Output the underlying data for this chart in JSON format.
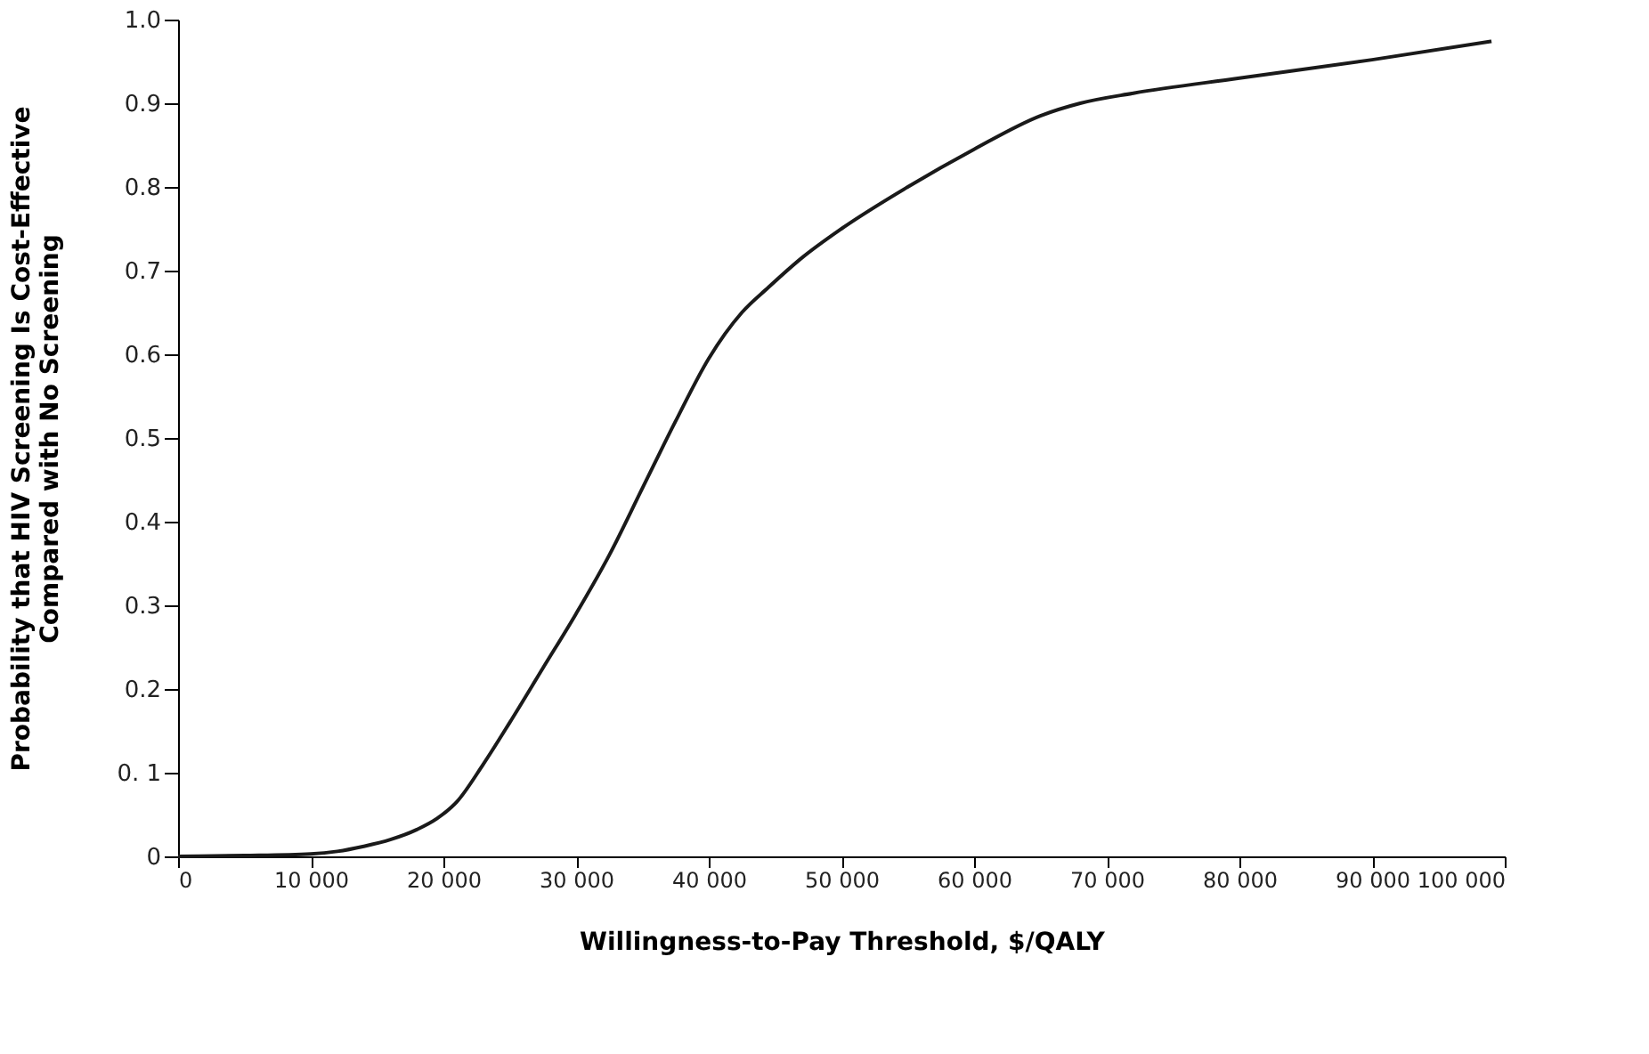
{
  "chart_data": {
    "type": "line",
    "xlabel": "Willingness-to-Pay Threshold, $/QALY",
    "ylabel": "Probability that HIV Screening Is Cost-Effective\nCompared with No Screening",
    "series": [
      {
        "color": "#1a1a1a",
        "x": [
          0,
          5000,
          10000,
          12000,
          14000,
          16000,
          18000,
          19500,
          21000,
          23000,
          25000,
          27500,
          30000,
          32500,
          35000,
          37500,
          40000,
          42500,
          44500,
          47000,
          50000,
          55000,
          60000,
          65000,
          68000,
          72000,
          80000,
          90000,
          99000
        ],
        "values": [
          0,
          0.001,
          0.003,
          0.006,
          0.012,
          0.02,
          0.032,
          0.045,
          0.065,
          0.11,
          0.16,
          0.225,
          0.29,
          0.36,
          0.44,
          0.52,
          0.595,
          0.65,
          0.68,
          0.715,
          0.75,
          0.8,
          0.845,
          0.885,
          0.9,
          0.912,
          0.93,
          0.952,
          0.974
        ]
      }
    ],
    "xlim": [
      0,
      100000
    ],
    "ylim": [
      0,
      1.0
    ],
    "xticks": [
      0,
      {
        "value": 10000,
        "label": "10 000"
      },
      {
        "value": 20000,
        "label": "20 000"
      },
      {
        "value": 30000,
        "label": "30 000"
      },
      {
        "value": 40000,
        "label": "40 000"
      },
      {
        "value": 50000,
        "label": "50 000"
      },
      {
        "value": 60000,
        "label": "60 000"
      },
      {
        "value": 70000,
        "label": "70 000"
      },
      {
        "value": 80000,
        "label": "80 000"
      },
      {
        "value": 90000,
        "label": "90 000"
      },
      {
        "value": 100000,
        "label": "100 000"
      }
    ],
    "yticks": [
      0,
      {
        "value": 0.1,
        "label": "0. 1"
      },
      0.2,
      0.3,
      0.4,
      0.5,
      0.6,
      0.7,
      0.8,
      0.9,
      {
        "value": 1.0,
        "label": "1.0"
      }
    ],
    "grid": false,
    "line_style": "solid",
    "marker": "none"
  }
}
